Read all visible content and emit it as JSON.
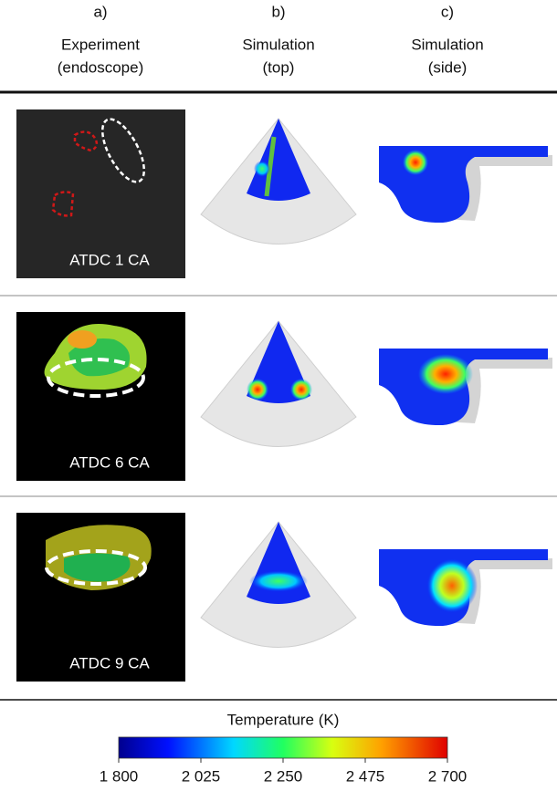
{
  "columns": [
    {
      "letter": "a)",
      "title": "Experiment",
      "subtitle": "(endoscope)"
    },
    {
      "letter": "b)",
      "title": "Simulation",
      "subtitle": "(top)"
    },
    {
      "letter": "c)",
      "title": "Simulation",
      "subtitle": "(side)"
    }
  ],
  "rows": [
    {
      "label": "ATDC 1 CA"
    },
    {
      "label": "ATDC 6 CA"
    },
    {
      "label": "ATDC 9 CA"
    }
  ],
  "colorbar": {
    "title": "Temperature (K)",
    "range": [
      1800,
      2700
    ],
    "ticks": [
      {
        "value": 1800,
        "label": "1 800"
      },
      {
        "value": 2025,
        "label": "2 025"
      },
      {
        "value": 2250,
        "label": "2 250"
      },
      {
        "value": 2475,
        "label": "2 475"
      },
      {
        "value": 2700,
        "label": "2 700"
      }
    ]
  }
}
